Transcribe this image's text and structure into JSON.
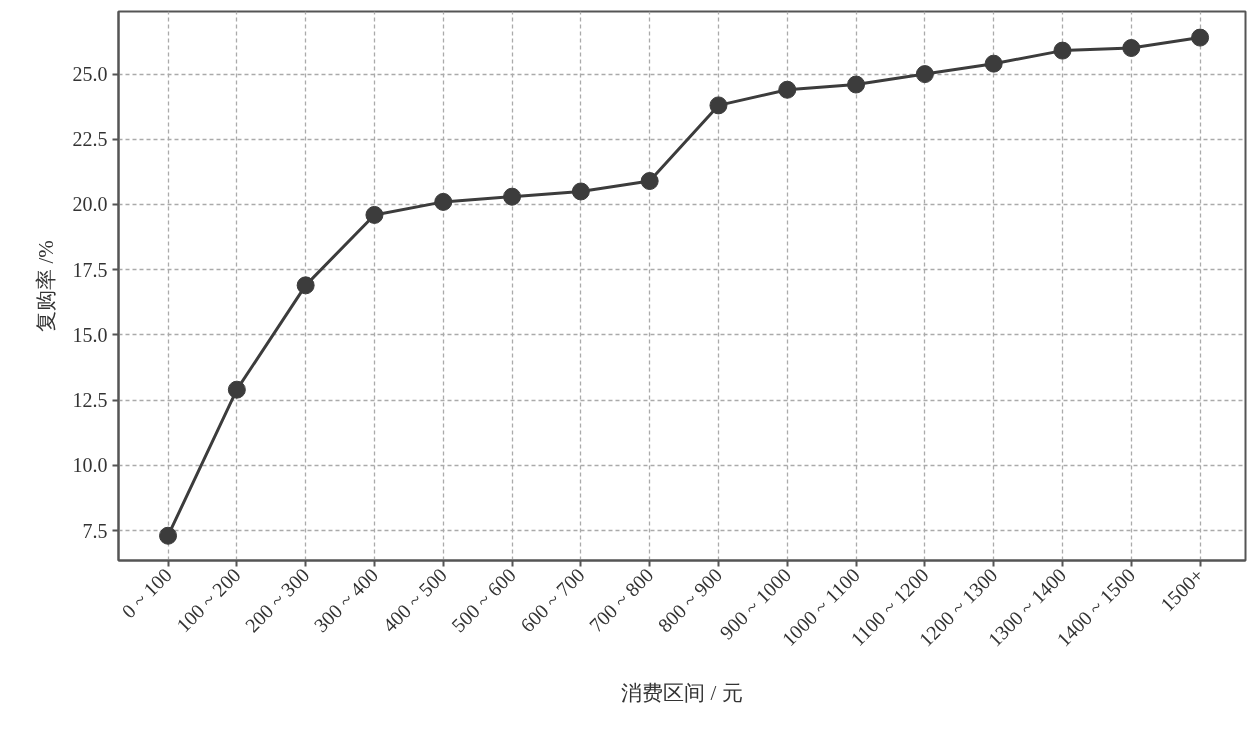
{
  "chart_data": {
    "type": "line",
    "xlabel": "消费区间 / 元",
    "ylabel": "复购率 /%",
    "categories": [
      "0 ~ 100",
      "100 ~ 200",
      "200 ~ 300",
      "300 ~ 400",
      "400 ~ 500",
      "500 ~ 600",
      "600 ~ 700",
      "700 ~ 800",
      "800 ~ 900",
      "900 ~ 1000",
      "1000 ~ 1100",
      "1100 ~ 1200",
      "1200 ~ 1300",
      "1300 ~ 1400",
      "1400 ~ 1500",
      "1500+"
    ],
    "series": [
      {
        "color": "#3c3c3c",
        "values": [
          7.3,
          12.9,
          16.9,
          19.6,
          20.1,
          20.3,
          20.5,
          20.9,
          23.8,
          24.4,
          24.6,
          25.0,
          25.4,
          25.9,
          26.0,
          26.4
        ]
      }
    ],
    "ylim": [
      6.35,
      27.4
    ],
    "yticks": [
      {
        "value": 7.5,
        "label": "7.5"
      },
      {
        "value": 10,
        "label": "10.0"
      },
      {
        "value": 12.5,
        "label": "12.5"
      },
      {
        "value": 15,
        "label": "15.0"
      },
      {
        "value": 17.5,
        "label": "17.5"
      },
      {
        "value": 20,
        "label": "20.0"
      },
      {
        "value": 22.5,
        "label": "22.5"
      },
      {
        "value": 25,
        "label": "25.0"
      }
    ],
    "grid": true,
    "marker": "circle",
    "line_style": "solid"
  }
}
